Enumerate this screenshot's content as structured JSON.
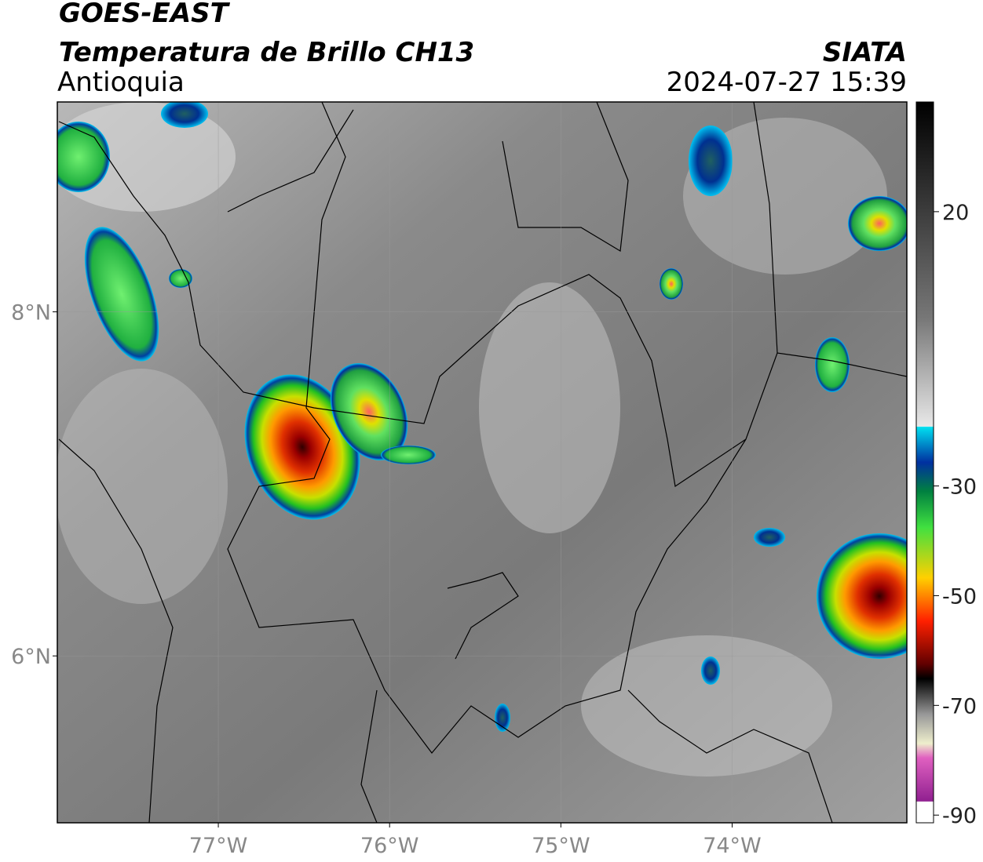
{
  "header": {
    "title": "GOES-EAST",
    "subtitle": "Temperatura de Brillo CH13",
    "region": "Antioquia",
    "source": "SIATA",
    "timestamp": "2024-07-27 15:39"
  },
  "map": {
    "xlim": [
      -77.94,
      -72.98
    ],
    "ylim": [
      5.03,
      9.22
    ],
    "xticks": [
      {
        "value": -77,
        "label": "77°W"
      },
      {
        "value": -76,
        "label": "76°W"
      },
      {
        "value": -75,
        "label": "75°W"
      },
      {
        "value": -74,
        "label": "74°W"
      }
    ],
    "yticks": [
      {
        "value": 8,
        "label": "8°N"
      },
      {
        "value": 6,
        "label": "6°N"
      }
    ],
    "grid": true
  },
  "colorbar": {
    "lim": [
      -91.4,
      40
    ],
    "ticks": [
      20,
      -30,
      -50,
      -70,
      -90
    ]
  }
}
